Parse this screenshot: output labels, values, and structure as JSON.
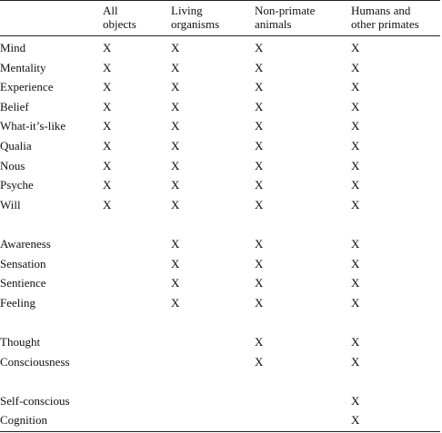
{
  "table": {
    "headers": [
      "",
      "All objects",
      "Living organisms",
      "Non-primate animals",
      "Humans and other primates"
    ],
    "header_lines": [
      [
        "",
        ""
      ],
      [
        "All",
        "objects"
      ],
      [
        "Living",
        "organisms"
      ],
      [
        "Non-primate",
        "animals"
      ],
      [
        "Humans and",
        "other primates"
      ]
    ],
    "groups": [
      {
        "rows": [
          {
            "term": "Mind",
            "marks": [
              "X",
              "X",
              "X",
              "X"
            ]
          },
          {
            "term": "Mentality",
            "marks": [
              "X",
              "X",
              "X",
              "X"
            ]
          },
          {
            "term": "Experience",
            "marks": [
              "X",
              "X",
              "X",
              "X"
            ]
          },
          {
            "term": "Belief",
            "marks": [
              "X",
              "X",
              "X",
              "X"
            ]
          },
          {
            "term": "What-it’s-like",
            "marks": [
              "X",
              "X",
              "X",
              "X"
            ]
          },
          {
            "term": "Qualia",
            "marks": [
              "X",
              "X",
              "X",
              "X"
            ]
          },
          {
            "term": "Nous",
            "marks": [
              "X",
              "X",
              "X",
              "X"
            ]
          },
          {
            "term": "Psyche",
            "marks": [
              "X",
              "X",
              "X",
              "X"
            ]
          },
          {
            "term": "Will",
            "marks": [
              "X",
              "X",
              "X",
              "X"
            ]
          }
        ]
      },
      {
        "rows": [
          {
            "term": "Awareness",
            "marks": [
              "",
              "X",
              "X",
              "X"
            ]
          },
          {
            "term": "Sensation",
            "marks": [
              "",
              "X",
              "X",
              "X"
            ]
          },
          {
            "term": "Sentience",
            "marks": [
              "",
              "X",
              "X",
              "X"
            ]
          },
          {
            "term": "Feeling",
            "marks": [
              "",
              "X",
              "X",
              "X"
            ]
          }
        ]
      },
      {
        "rows": [
          {
            "term": "Thought",
            "marks": [
              "",
              "",
              "X",
              "X"
            ]
          },
          {
            "term": "Consciousness",
            "marks": [
              "",
              "",
              "X",
              "X"
            ]
          }
        ]
      },
      {
        "rows": [
          {
            "term": "Self-conscious",
            "marks": [
              "",
              "",
              "",
              "X"
            ]
          },
          {
            "term": "Cognition",
            "marks": [
              "",
              "",
              "",
              "X"
            ]
          }
        ]
      }
    ]
  }
}
